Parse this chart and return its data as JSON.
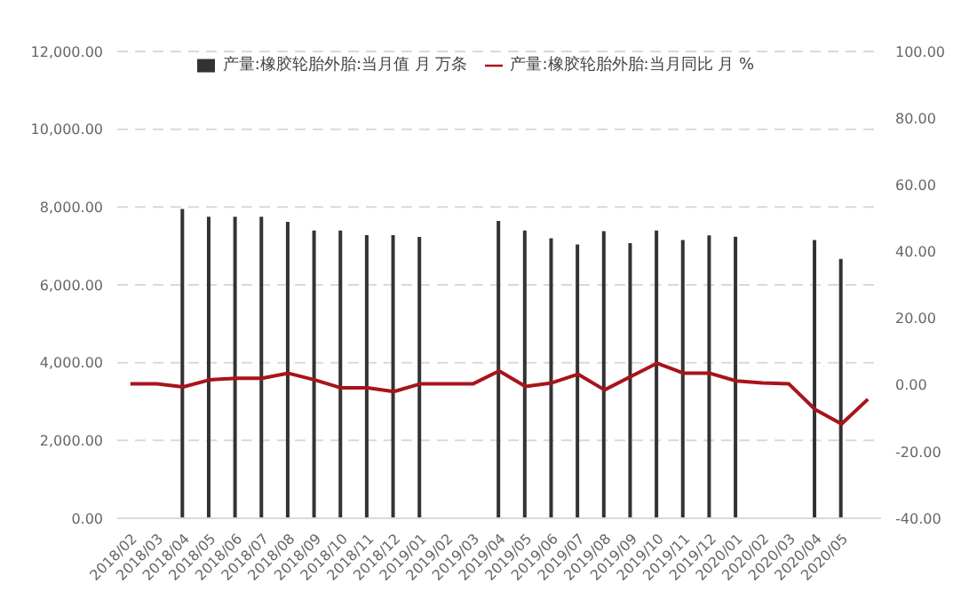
{
  "chart_data": {
    "type": "bar",
    "categories": [
      "2018/02",
      "2018/03",
      "2018/04",
      "2018/05",
      "2018/06",
      "2018/07",
      "2018/08",
      "2018/09",
      "2018/10",
      "2018/11",
      "2018/12",
      "2019/01",
      "2019/02",
      "2019/03",
      "2019/04",
      "2019/05",
      "2019/06",
      "2019/07",
      "2019/08",
      "2019/09",
      "2019/10",
      "2019/11",
      "2019/12",
      "2020/01",
      "2020/02",
      "2020/03",
      "2020/04",
      "2020/05",
      null
    ],
    "series": [
      {
        "name": "产量:橡胶轮胎外胎:当月值 月 万条",
        "color": "#333333",
        "values": [
          null,
          null,
          7950,
          7750,
          7750,
          7750,
          7620,
          7400,
          7400,
          7280,
          7280,
          7230,
          null,
          null,
          7640,
          7400,
          7200,
          7040,
          7380,
          7070,
          7400,
          7150,
          7270,
          7240,
          null,
          null,
          7150,
          6670,
          null
        ]
      },
      {
        "name": "产量:橡胶轮胎外胎:当月同比 月 %",
        "type": "line",
        "axis": "y2",
        "color": "#a8141c",
        "values": [
          0.3,
          0.3,
          -0.6,
          1.5,
          2,
          2,
          3.5,
          1.5,
          -0.9,
          -0.9,
          -2,
          0.3,
          0.3,
          0.3,
          4.2,
          -0.5,
          0.6,
          3.2,
          -1.5,
          2.5,
          6.5,
          3.5,
          3.5,
          1.2,
          0.6,
          0.3,
          -7.4,
          -11.7,
          -4.3
        ]
      }
    ],
    "ylim": [
      0,
      12000
    ],
    "yticks": [
      {
        "value": 0,
        "label": "0.00"
      },
      {
        "value": 2000,
        "label": "2,000.00"
      },
      {
        "value": 4000,
        "label": "4,000.00"
      },
      {
        "value": 6000,
        "label": "6,000.00"
      },
      {
        "value": 8000,
        "label": "8,000.00"
      },
      {
        "value": 10000,
        "label": "10,000.00"
      },
      {
        "value": 12000,
        "label": "12,000.00"
      }
    ],
    "y2lim": [
      -40,
      100
    ],
    "y2ticks": [
      {
        "value": -40,
        "label": "-40.00"
      },
      {
        "value": -20,
        "label": "-20.00"
      },
      {
        "value": 0,
        "label": "0.00"
      },
      {
        "value": 20,
        "label": "20.00"
      },
      {
        "value": 40,
        "label": "40.00"
      },
      {
        "value": 60,
        "label": "60.00"
      },
      {
        "value": 80,
        "label": "80.00"
      },
      {
        "value": 100,
        "label": "100.00"
      }
    ],
    "grid": "y",
    "legend": "top",
    "marker": "none",
    "line_style": "solid"
  }
}
